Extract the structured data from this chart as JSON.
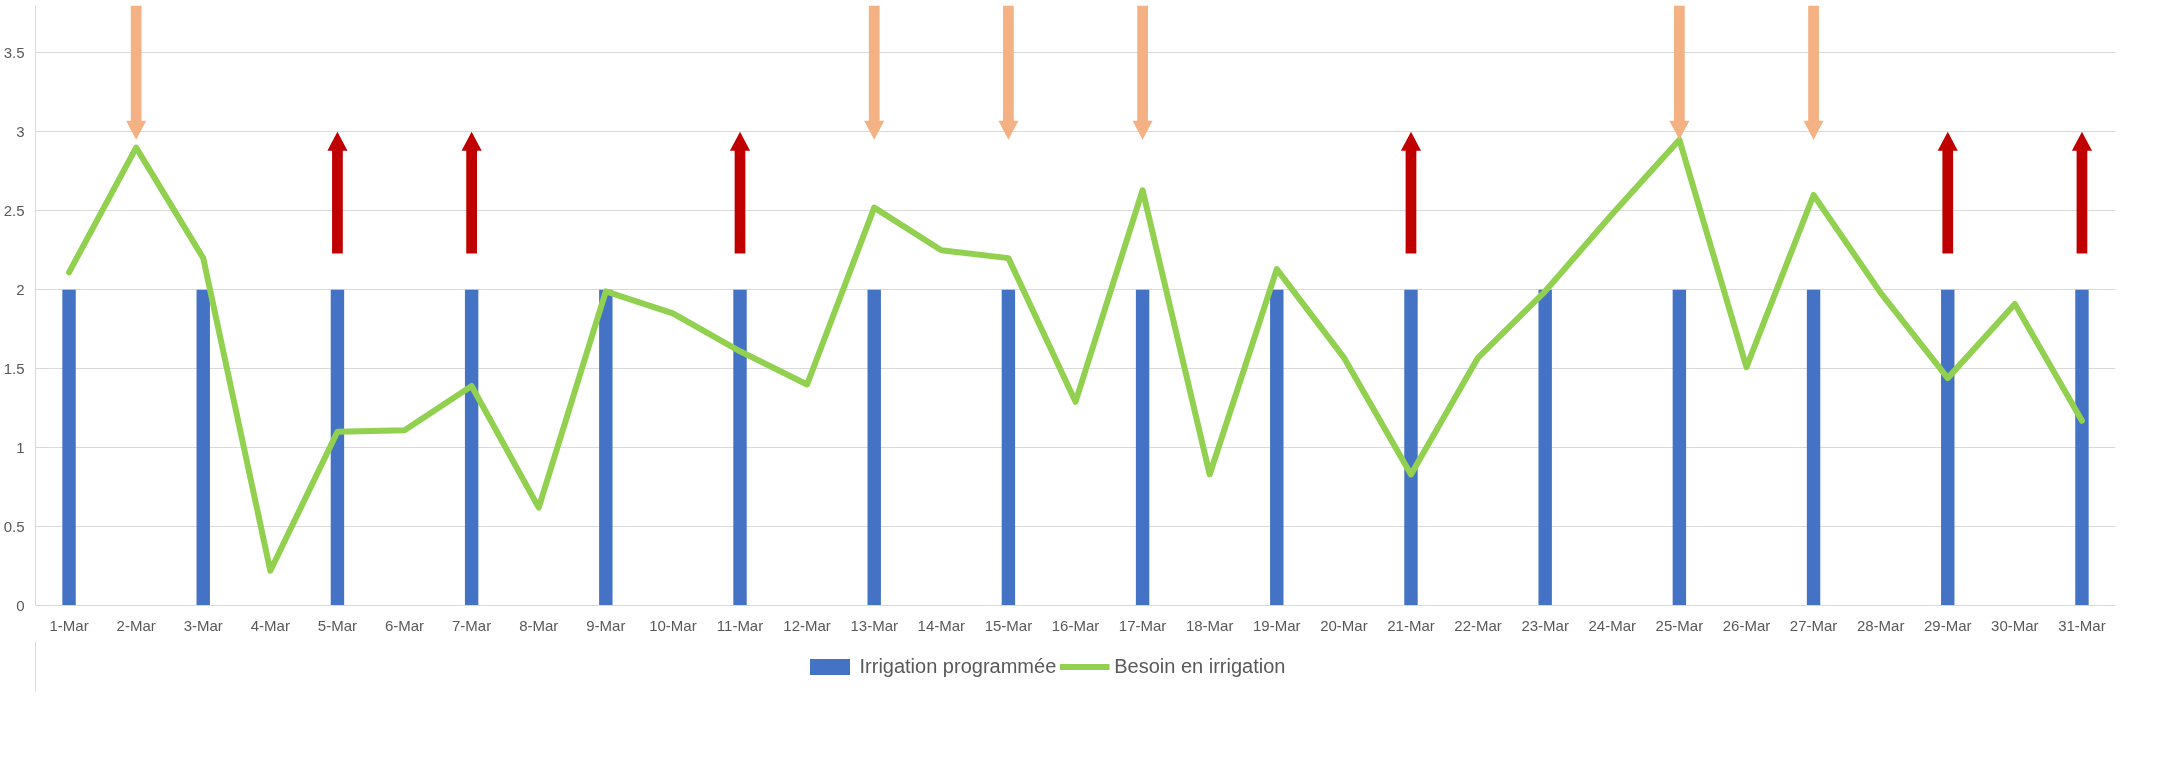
{
  "chart_data": {
    "type": "bar",
    "categories": [
      "1-Mar",
      "2-Mar",
      "3-Mar",
      "4-Mar",
      "5-Mar",
      "6-Mar",
      "7-Mar",
      "8-Mar",
      "9-Mar",
      "10-Mar",
      "11-Mar",
      "12-Mar",
      "13-Mar",
      "14-Mar",
      "15-Mar",
      "16-Mar",
      "17-Mar",
      "18-Mar",
      "19-Mar",
      "20-Mar",
      "21-Mar",
      "22-Mar",
      "23-Mar",
      "24-Mar",
      "25-Mar",
      "26-Mar",
      "27-Mar",
      "28-Mar",
      "29-Mar",
      "30-Mar",
      "31-Mar"
    ],
    "series": [
      {
        "name": "Irrigation programmée",
        "color": "#4472c4",
        "values": [
          2,
          null,
          2,
          null,
          2,
          null,
          2,
          null,
          2,
          null,
          2,
          null,
          2,
          null,
          2,
          null,
          2,
          null,
          2,
          null,
          2,
          null,
          2,
          null,
          2,
          null,
          2,
          null,
          2,
          null,
          2
        ]
      },
      {
        "name": "Besoin en irrigation",
        "type": "line",
        "color": "#92d050",
        "values": [
          2.11,
          2.9,
          2.2,
          0.22,
          1.1,
          1.11,
          1.39,
          0.62,
          1.99,
          1.85,
          1.61,
          1.4,
          2.52,
          2.25,
          2.2,
          1.29,
          2.63,
          0.83,
          2.13,
          1.57,
          0.83,
          1.57,
          1.99,
          2.48,
          2.95,
          1.51,
          2.6,
          1.98,
          1.44,
          1.91,
          1.17
        ]
      }
    ],
    "ylim": [
      0,
      3.8
    ],
    "yticks": [
      0,
      0.5,
      1,
      1.5,
      2,
      2.5,
      3,
      3.5
    ],
    "grid": "y",
    "legend": "bottom"
  }
}
